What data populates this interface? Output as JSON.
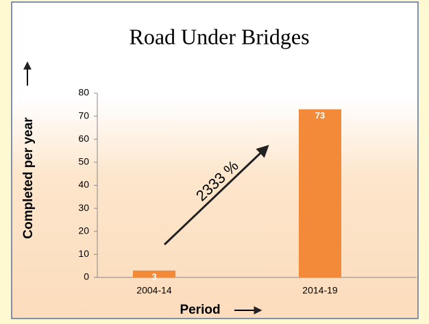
{
  "chart_data": {
    "type": "bar",
    "title": "Road Under Bridges",
    "x_label": "Period",
    "y_label": "Completed per year",
    "annotation": "2333 %",
    "categories": [
      "2004-14",
      "2014-19"
    ],
    "values": [
      3,
      73
    ],
    "color": "#f28a3a",
    "ylim": [
      0,
      80
    ],
    "yticks": [
      0,
      10,
      20,
      30,
      40,
      50,
      60,
      70,
      80
    ]
  }
}
